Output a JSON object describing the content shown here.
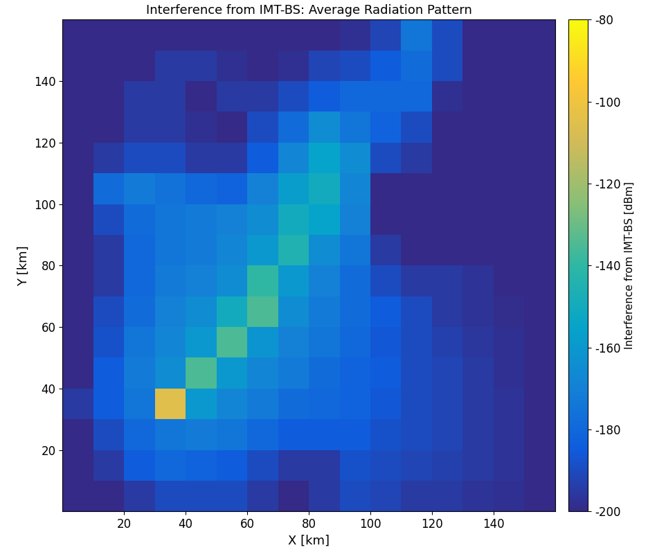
{
  "chart_data": {
    "type": "heatmap",
    "title": "Interference from IMT-BS: Average Radiation Pattern",
    "x_label": "X [km]",
    "y_label": "Y [km]",
    "colorbar_label": "Interference from IMT-BS [dBm]",
    "xlim": [
      0,
      160
    ],
    "ylim": [
      0,
      160
    ],
    "xticks": [
      20,
      40,
      60,
      80,
      100,
      120,
      140
    ],
    "yticks": [
      20,
      40,
      60,
      80,
      100,
      120,
      140
    ],
    "x_edges": [
      0,
      10,
      20,
      30,
      40,
      50,
      60,
      70,
      80,
      90,
      100,
      110,
      120,
      130,
      140,
      150,
      160
    ],
    "y_edges": [
      0,
      10,
      20,
      30,
      40,
      50,
      60,
      70,
      80,
      90,
      100,
      110,
      120,
      130,
      140,
      150,
      160
    ],
    "cells": [
      [
        -200,
        -200,
        -195,
        -190,
        -190,
        -190,
        -195,
        -200,
        -195,
        -190,
        -192,
        -195,
        -195,
        -197,
        -198,
        -200
      ],
      [
        -200,
        -195,
        -185,
        -180,
        -182,
        -185,
        -190,
        -195,
        -195,
        -188,
        -190,
        -192,
        -193,
        -195,
        -197,
        -200
      ],
      [
        -200,
        -190,
        -180,
        -175,
        -172,
        -175,
        -180,
        -185,
        -185,
        -185,
        -188,
        -190,
        -192,
        -195,
        -197,
        -200
      ],
      [
        -195,
        -185,
        -175,
        -105,
        -160,
        -168,
        -172,
        -178,
        -180,
        -182,
        -186,
        -190,
        -192,
        -195,
        -197,
        -200
      ],
      [
        -200,
        -185,
        -172,
        -165,
        -135,
        -160,
        -168,
        -172,
        -178,
        -182,
        -185,
        -190,
        -192,
        -195,
        -198,
        -200
      ],
      [
        -200,
        -188,
        -175,
        -168,
        -160,
        -135,
        -162,
        -170,
        -175,
        -180,
        -186,
        -190,
        -193,
        -196,
        -198,
        -200
      ],
      [
        -200,
        -190,
        -178,
        -170,
        -165,
        -150,
        -135,
        -165,
        -172,
        -178,
        -185,
        -190,
        -195,
        -197,
        -199,
        -200
      ],
      [
        -200,
        -195,
        -180,
        -172,
        -170,
        -165,
        -140,
        -160,
        -170,
        -178,
        -190,
        -195,
        -195,
        -197,
        -200,
        -200
      ],
      [
        -200,
        -195,
        -180,
        -175,
        -172,
        -168,
        -160,
        -145,
        -165,
        -175,
        -195,
        -200,
        -200,
        -200,
        -200,
        -200
      ],
      [
        -200,
        -190,
        -178,
        -175,
        -172,
        -170,
        -165,
        -150,
        -155,
        -170,
        -200,
        -200,
        -200,
        -200,
        -200,
        -200
      ],
      [
        -200,
        -178,
        -172,
        -176,
        -180,
        -182,
        -170,
        -158,
        -150,
        -168,
        -200,
        -200,
        -200,
        -200,
        -200,
        -200
      ],
      [
        -200,
        -195,
        -190,
        -190,
        -195,
        -195,
        -185,
        -168,
        -155,
        -165,
        -190,
        -195,
        -200,
        -200,
        -200,
        -200
      ],
      [
        -200,
        -200,
        -195,
        -195,
        -198,
        -200,
        -190,
        -178,
        -165,
        -175,
        -182,
        -190,
        -200,
        -200,
        -200,
        -200
      ],
      [
        -200,
        -200,
        -195,
        -195,
        -200,
        -195,
        -195,
        -190,
        -185,
        -180,
        -180,
        -180,
        -198,
        -200,
        -200,
        -200
      ],
      [
        -200,
        -200,
        -200,
        -195,
        -195,
        -198,
        -200,
        -198,
        -192,
        -190,
        -185,
        -178,
        -190,
        -200,
        -200,
        -200
      ],
      [
        -200,
        -200,
        -200,
        -200,
        -200,
        -200,
        -200,
        -200,
        -200,
        -198,
        -192,
        -175,
        -190,
        -200,
        -200,
        -200
      ]
    ],
    "colorbar_range": [
      -200,
      -80
    ],
    "colorbar_ticks": [
      -200,
      -180,
      -160,
      -140,
      -120,
      -100,
      -80
    ]
  }
}
